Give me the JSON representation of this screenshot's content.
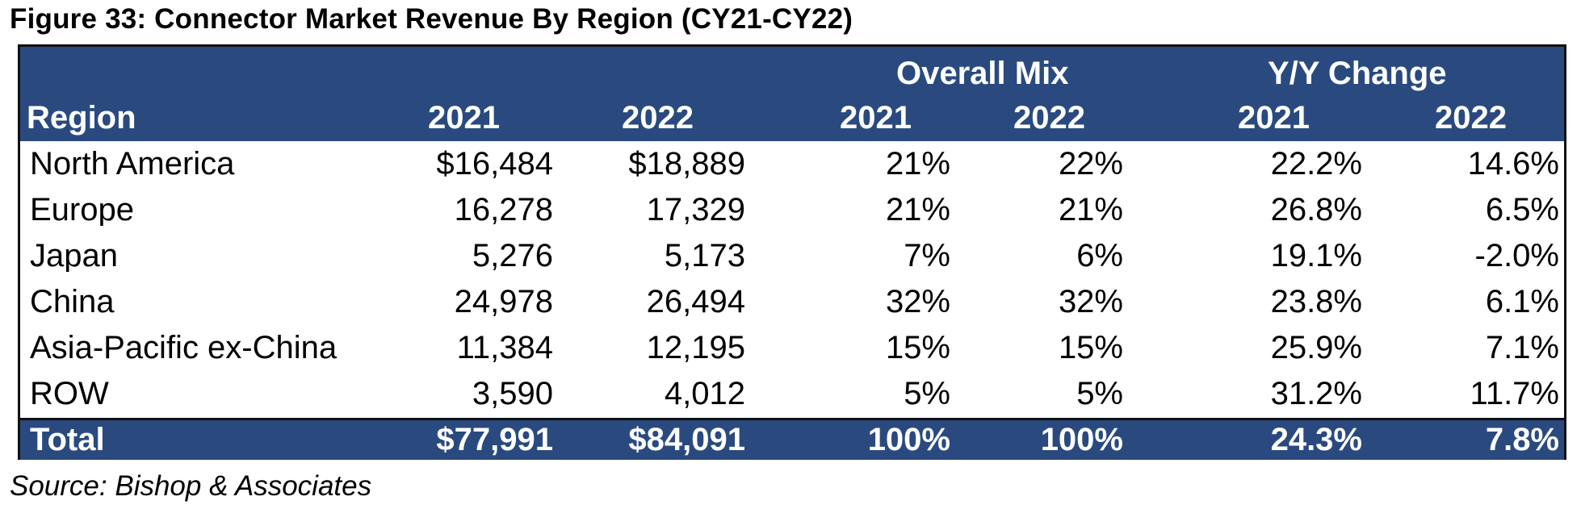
{
  "figure": {
    "title": "Figure 33: Connector Market Revenue By Region (CY21-CY22)",
    "source": "Source: Bishop & Associates"
  },
  "table": {
    "group_headers": [
      "Overall Mix",
      "Y/Y Change"
    ],
    "columns": [
      "Region",
      "2021",
      "2022",
      "2021",
      "2022",
      "2021",
      "2022"
    ],
    "rows": [
      [
        "North America",
        "$16,484",
        "$18,889",
        "21%",
        "22%",
        "22.2%",
        "14.6%"
      ],
      [
        "Europe",
        "16,278",
        "17,329",
        "21%",
        "21%",
        "26.8%",
        "6.5%"
      ],
      [
        "Japan",
        "5,276",
        "5,173",
        "7%",
        "6%",
        "19.1%",
        "-2.0%"
      ],
      [
        "China",
        "24,978",
        "26,494",
        "32%",
        "32%",
        "23.8%",
        "6.1%"
      ],
      [
        "Asia-Pacific ex-China",
        "11,384",
        "12,195",
        "15%",
        "15%",
        "25.9%",
        "7.1%"
      ],
      [
        "ROW",
        "3,590",
        "4,012",
        "5%",
        "5%",
        "31.2%",
        "11.7%"
      ]
    ],
    "total": [
      "Total",
      "$77,991",
      "$84,091",
      "100%",
      "100%",
      "24.3%",
      "7.8%"
    ],
    "colors": {
      "header_bg": "#2a4a7f",
      "header_text": "#ffffff"
    }
  }
}
